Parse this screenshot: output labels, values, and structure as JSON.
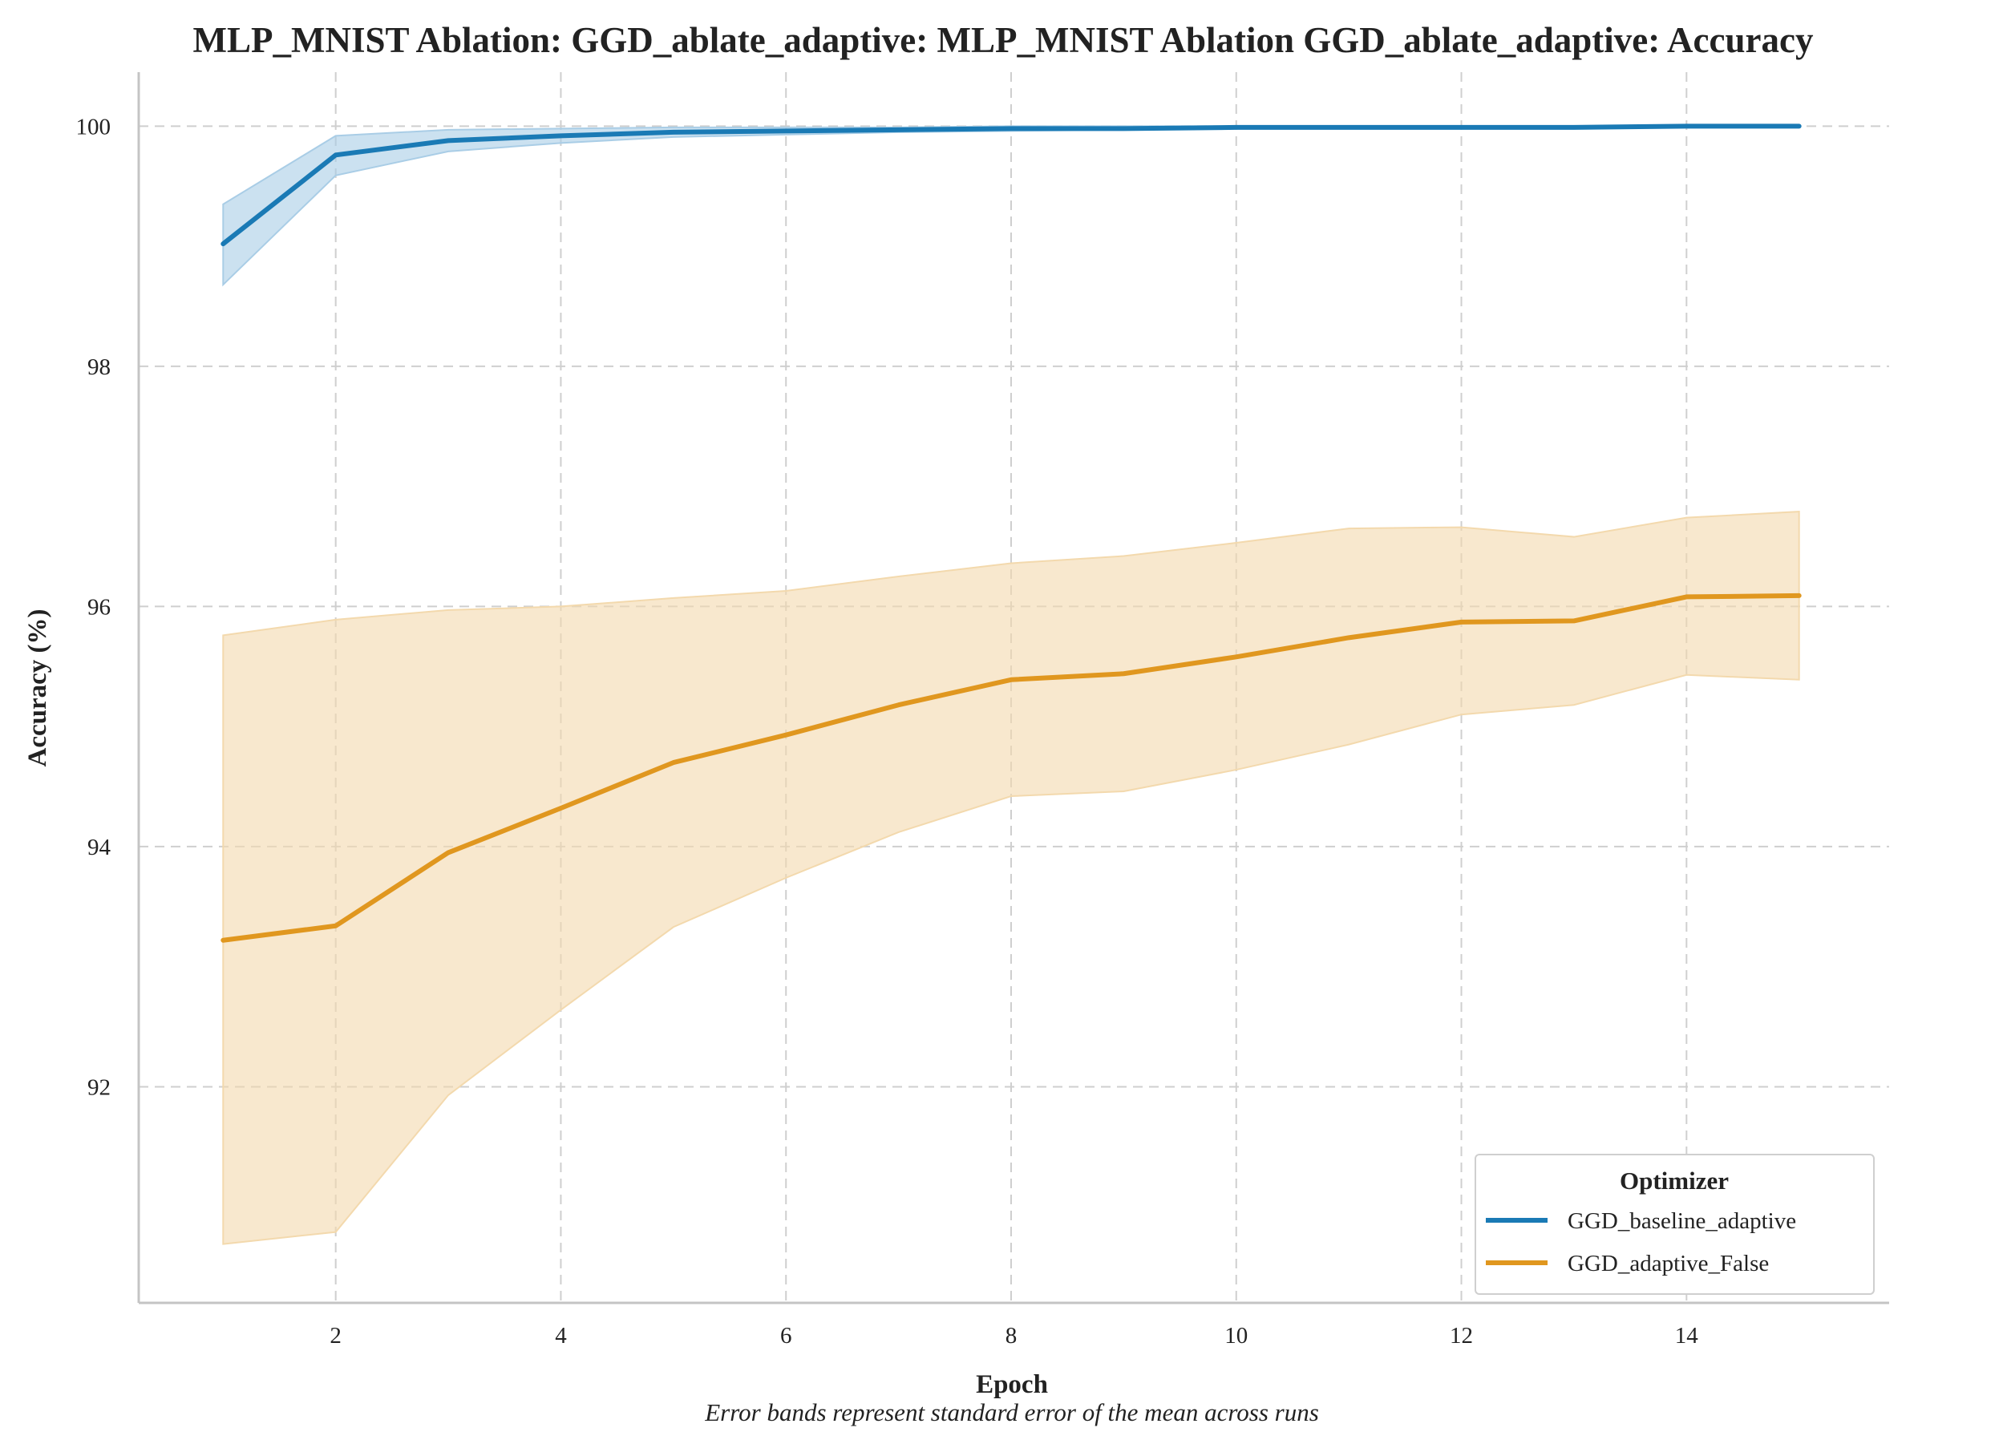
{
  "chart_data": {
    "type": "line",
    "title": "MLP_MNIST Ablation: GGD_ablate_adaptive: MLP_MNIST Ablation GGD_ablate_adaptive: Accuracy",
    "xlabel": "Epoch",
    "ylabel": "Accuracy (%)",
    "caption": "Error bands represent standard error of the mean across runs",
    "xlim": [
      0.25,
      15.8
    ],
    "ylim": [
      90.2,
      100.45
    ],
    "xticks": [
      2,
      4,
      6,
      8,
      10,
      12,
      14
    ],
    "yticks": [
      92,
      94,
      96,
      98,
      100
    ],
    "grid": true,
    "legend": {
      "title": "Optimizer",
      "position": "lower-right"
    },
    "series": [
      {
        "name": "GGD_baseline_adaptive",
        "color": "#1a7ab5",
        "band_color": "#a9cde6",
        "x": [
          1,
          2,
          3,
          4,
          5,
          6,
          7,
          8,
          9,
          10,
          11,
          12,
          13,
          14,
          15
        ],
        "values": [
          99.02,
          99.76,
          99.88,
          99.92,
          99.95,
          99.96,
          99.97,
          99.98,
          99.98,
          99.99,
          99.99,
          99.99,
          99.99,
          100.0,
          100.0
        ],
        "lower": [
          98.68,
          99.59,
          99.79,
          99.86,
          99.91,
          99.93,
          99.95,
          99.96,
          99.97,
          99.98,
          99.98,
          99.99,
          99.99,
          99.99,
          99.99
        ],
        "upper": [
          99.35,
          99.92,
          99.97,
          99.98,
          99.99,
          99.99,
          99.99,
          100.0,
          100.0,
          100.0,
          100.0,
          100.0,
          100.0,
          100.0,
          100.0
        ]
      },
      {
        "name": "GGD_adaptive_False",
        "color": "#e0971f",
        "band_color": "#f3d9ad",
        "x": [
          1,
          2,
          3,
          4,
          5,
          6,
          7,
          8,
          9,
          10,
          11,
          12,
          13,
          14,
          15
        ],
        "values": [
          93.22,
          93.34,
          93.95,
          94.32,
          94.7,
          94.93,
          95.18,
          95.39,
          95.44,
          95.58,
          95.74,
          95.87,
          95.88,
          96.08,
          96.09
        ],
        "lower": [
          90.69,
          90.79,
          91.93,
          92.64,
          93.33,
          93.74,
          94.12,
          94.42,
          94.46,
          94.64,
          94.85,
          95.1,
          95.18,
          95.43,
          95.39
        ],
        "upper": [
          95.76,
          95.89,
          95.97,
          96.0,
          96.07,
          96.13,
          96.25,
          96.36,
          96.42,
          96.53,
          96.65,
          96.66,
          96.58,
          96.74,
          96.79
        ]
      }
    ]
  }
}
